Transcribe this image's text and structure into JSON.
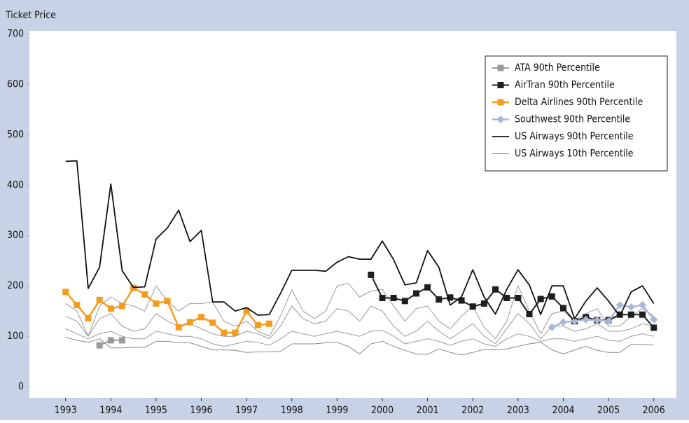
{
  "chart_data": {
    "type": "line",
    "y_label": "Ticket Price",
    "x": [
      1993,
      1993.25,
      1993.5,
      1993.75,
      1994,
      1994.25,
      1994.5,
      1994.75,
      1995,
      1995.25,
      1995.5,
      1995.75,
      1996,
      1996.25,
      1996.5,
      1996.75,
      1997,
      1997.25,
      1997.5,
      1997.75,
      1998,
      1998.25,
      1998.5,
      1998.75,
      1999,
      1999.25,
      1999.5,
      1999.75,
      2000,
      2000.25,
      2000.5,
      2000.75,
      2001,
      2001.25,
      2001.5,
      2001.75,
      2002,
      2002.25,
      2002.5,
      2002.75,
      2003,
      2003.25,
      2003.5,
      2003.75,
      2004,
      2004.25,
      2004.5,
      2004.75,
      2005,
      2005.25,
      2005.5,
      2005.75,
      2006
    ],
    "xlim": [
      1992.2,
      2006.5
    ],
    "xticks": [
      1993,
      1994,
      1995,
      1996,
      1997,
      1998,
      1999,
      2000,
      2001,
      2002,
      2003,
      2004,
      2005,
      2006
    ],
    "ylim": [
      -22,
      706
    ],
    "yticks": [
      0,
      100,
      200,
      300,
      400,
      500,
      600,
      700
    ],
    "grid": false,
    "legend": "upper right",
    "series": [
      {
        "name": null,
        "color": "#9a9a9a",
        "width": 1,
        "marker": null,
        "values": [
          165,
          150,
          100,
          160,
          178,
          165,
          160,
          150,
          200,
          170,
          150,
          165,
          165,
          168,
          130,
          120,
          130,
          110,
          100,
          140,
          192,
          150,
          135,
          150,
          200,
          205,
          178,
          190,
          193,
          160,
          130,
          155,
          160,
          130,
          115,
          140,
          160,
          118,
          95,
          130,
          200,
          150,
          105,
          145,
          150,
          130,
          145,
          155,
          120,
          120,
          140,
          155,
          140
        ]
      },
      {
        "name": null,
        "color": "#9a9a9a",
        "width": 1,
        "marker": null,
        "values": [
          140,
          130,
          100,
          135,
          145,
          120,
          110,
          115,
          145,
          130,
          120,
          125,
          115,
          105,
          100,
          100,
          110,
          105,
          95,
          120,
          160,
          135,
          125,
          130,
          155,
          150,
          130,
          160,
          150,
          120,
          100,
          110,
          130,
          110,
          95,
          110,
          125,
          100,
          85,
          115,
          145,
          125,
          95,
          120,
          120,
          110,
          115,
          125,
          110,
          110,
          115,
          125,
          120
        ]
      },
      {
        "name": null,
        "color": "#9a9a9a",
        "width": 1,
        "marker": null,
        "values": [
          115,
          105,
          95,
          105,
          110,
          100,
          95,
          95,
          110,
          105,
          100,
          100,
          95,
          85,
          80,
          85,
          90,
          88,
          82,
          95,
          110,
          105,
          100,
          105,
          110,
          105,
          100,
          110,
          112,
          100,
          85,
          90,
          95,
          90,
          82,
          90,
          95,
          85,
          80,
          95,
          105,
          100,
          90,
          95,
          95,
          90,
          95,
          100,
          92,
          90,
          100,
          105,
          100
        ]
      },
      {
        "name": "ATA 90th Percentile",
        "color": "#9a9a9a",
        "width": 2,
        "marker": "square",
        "x": [
          1993.75,
          1994,
          1994.25
        ],
        "values": [
          82,
          92,
          92
        ]
      },
      {
        "name": "AirTran 90th Percentile",
        "color": "#1e1e1e",
        "width": 2,
        "marker": "square",
        "x": [
          1999.75,
          2000,
          2000.25,
          2000.5,
          2000.75,
          2001,
          2001.25,
          2001.5,
          2001.75,
          2002,
          2002.25,
          2002.5,
          2002.75,
          2003,
          2003.25,
          2003.5,
          2003.75,
          2004,
          2004.25,
          2004.5,
          2004.75,
          2005,
          2005.25,
          2005.5,
          2005.75,
          2006
        ],
        "values": [
          222,
          176,
          176,
          170,
          185,
          197,
          173,
          177,
          171,
          159,
          165,
          193,
          176,
          176,
          144,
          174,
          179,
          156,
          130,
          138,
          132,
          132,
          143,
          143,
          143,
          117
        ]
      },
      {
        "name": "Delta Airlines 90th Percentile",
        "color": "#f39c1f",
        "width": 2.5,
        "marker": "square",
        "x": [
          1993,
          1993.25,
          1993.5,
          1993.75,
          1994,
          1994.25,
          1994.5,
          1994.75,
          1995,
          1995.25,
          1995.5,
          1995.75,
          1996,
          1996.25,
          1996.5,
          1996.75,
          1997,
          1997.25,
          1997.5
        ],
        "values": [
          188,
          162,
          136,
          172,
          155,
          160,
          196,
          183,
          165,
          170,
          118,
          128,
          138,
          127,
          107,
          107,
          150,
          122,
          125
        ]
      },
      {
        "name": "Southwest 90th Percentile",
        "color": "#a9b8d8",
        "width": 2.5,
        "marker": "diamond",
        "x": [
          2003.75,
          2004,
          2004.25,
          2004.5,
          2004.75,
          2005,
          2005.25,
          2005.5,
          2005.75,
          2006
        ],
        "values": [
          118,
          128,
          130,
          133,
          132,
          130,
          162,
          158,
          162,
          133
        ]
      },
      {
        "name": "US Airways 90th Percentile",
        "color": "#111111",
        "width": 1.8,
        "marker": null,
        "values": [
          447,
          448,
          195,
          237,
          402,
          230,
          197,
          198,
          293,
          315,
          350,
          288,
          310,
          168,
          168,
          150,
          157,
          142,
          143,
          185,
          231,
          231,
          231,
          229,
          247,
          258,
          253,
          253,
          289,
          252,
          202,
          206,
          270,
          237,
          162,
          178,
          232,
          178,
          144,
          193,
          232,
          202,
          143,
          200,
          200,
          135,
          170,
          196,
          170,
          140,
          188,
          200,
          165
        ]
      },
      {
        "name": "US Airways 10th Percentile",
        "color": "#8a8a8a",
        "width": 1,
        "marker": null,
        "values": [
          98,
          92,
          88,
          95,
          77,
          77,
          78,
          78,
          90,
          90,
          87,
          87,
          80,
          73,
          73,
          72,
          68,
          69,
          69,
          70,
          85,
          85,
          85,
          87,
          88,
          80,
          65,
          85,
          90,
          80,
          72,
          65,
          64,
          75,
          68,
          63,
          68,
          74,
          73,
          75,
          80,
          85,
          88,
          73,
          65,
          73,
          80,
          72,
          68,
          68,
          84,
          84,
          83
        ]
      }
    ]
  }
}
